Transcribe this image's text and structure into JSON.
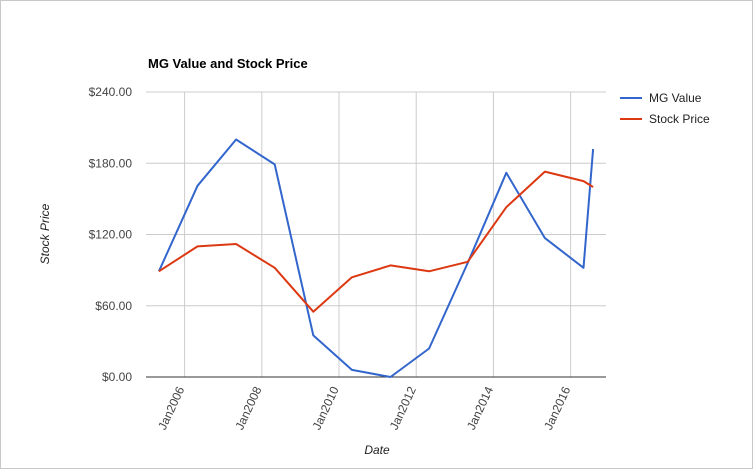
{
  "chart_data": {
    "type": "line",
    "title": "MG Value and Stock Price",
    "xlabel": "Date",
    "ylabel": "Stock Price",
    "ylim": [
      0,
      240
    ],
    "xlim": [
      "2005-01-01",
      "2016-12-01"
    ],
    "grid": true,
    "legend_position": "right",
    "y_ticks": [
      {
        "value": 0,
        "label": "$0.00"
      },
      {
        "value": 60,
        "label": "$60.00"
      },
      {
        "value": 120,
        "label": "$120.00"
      },
      {
        "value": 180,
        "label": "$180.00"
      },
      {
        "value": 240,
        "label": "$240.00"
      }
    ],
    "x_ticks": [
      {
        "value": "2006-01-01",
        "label": "Jan2006"
      },
      {
        "value": "2008-01-01",
        "label": "Jan2008"
      },
      {
        "value": "2010-01-01",
        "label": "Jan2010"
      },
      {
        "value": "2012-01-01",
        "label": "Jan2012"
      },
      {
        "value": "2014-01-01",
        "label": "Jan2014"
      },
      {
        "value": "2016-01-01",
        "label": "Jan2016"
      }
    ],
    "series": [
      {
        "name": "MG Value",
        "color": "#3366cc",
        "points": [
          {
            "x": "2005-05-01",
            "y": 89
          },
          {
            "x": "2006-05-01",
            "y": 161
          },
          {
            "x": "2007-05-01",
            "y": 200
          },
          {
            "x": "2008-05-01",
            "y": 179
          },
          {
            "x": "2009-05-01",
            "y": 35
          },
          {
            "x": "2010-05-01",
            "y": 6
          },
          {
            "x": "2011-05-01",
            "y": 0
          },
          {
            "x": "2012-05-01",
            "y": 24
          },
          {
            "x": "2013-05-01",
            "y": 96
          },
          {
            "x": "2014-05-01",
            "y": 172
          },
          {
            "x": "2015-05-01",
            "y": 117
          },
          {
            "x": "2016-05-01",
            "y": 92
          },
          {
            "x": "2016-08-01",
            "y": 192
          }
        ]
      },
      {
        "name": "Stock Price",
        "color": "#dc3912",
        "points": [
          {
            "x": "2005-05-01",
            "y": 89
          },
          {
            "x": "2006-05-01",
            "y": 110
          },
          {
            "x": "2007-05-01",
            "y": 112
          },
          {
            "x": "2008-05-01",
            "y": 92
          },
          {
            "x": "2009-05-01",
            "y": 55
          },
          {
            "x": "2010-05-01",
            "y": 84
          },
          {
            "x": "2011-05-01",
            "y": 94
          },
          {
            "x": "2012-05-01",
            "y": 89
          },
          {
            "x": "2013-05-01",
            "y": 97
          },
          {
            "x": "2014-05-01",
            "y": 143
          },
          {
            "x": "2015-05-01",
            "y": 173
          },
          {
            "x": "2016-05-01",
            "y": 165
          },
          {
            "x": "2016-08-01",
            "y": 160
          }
        ]
      }
    ]
  }
}
